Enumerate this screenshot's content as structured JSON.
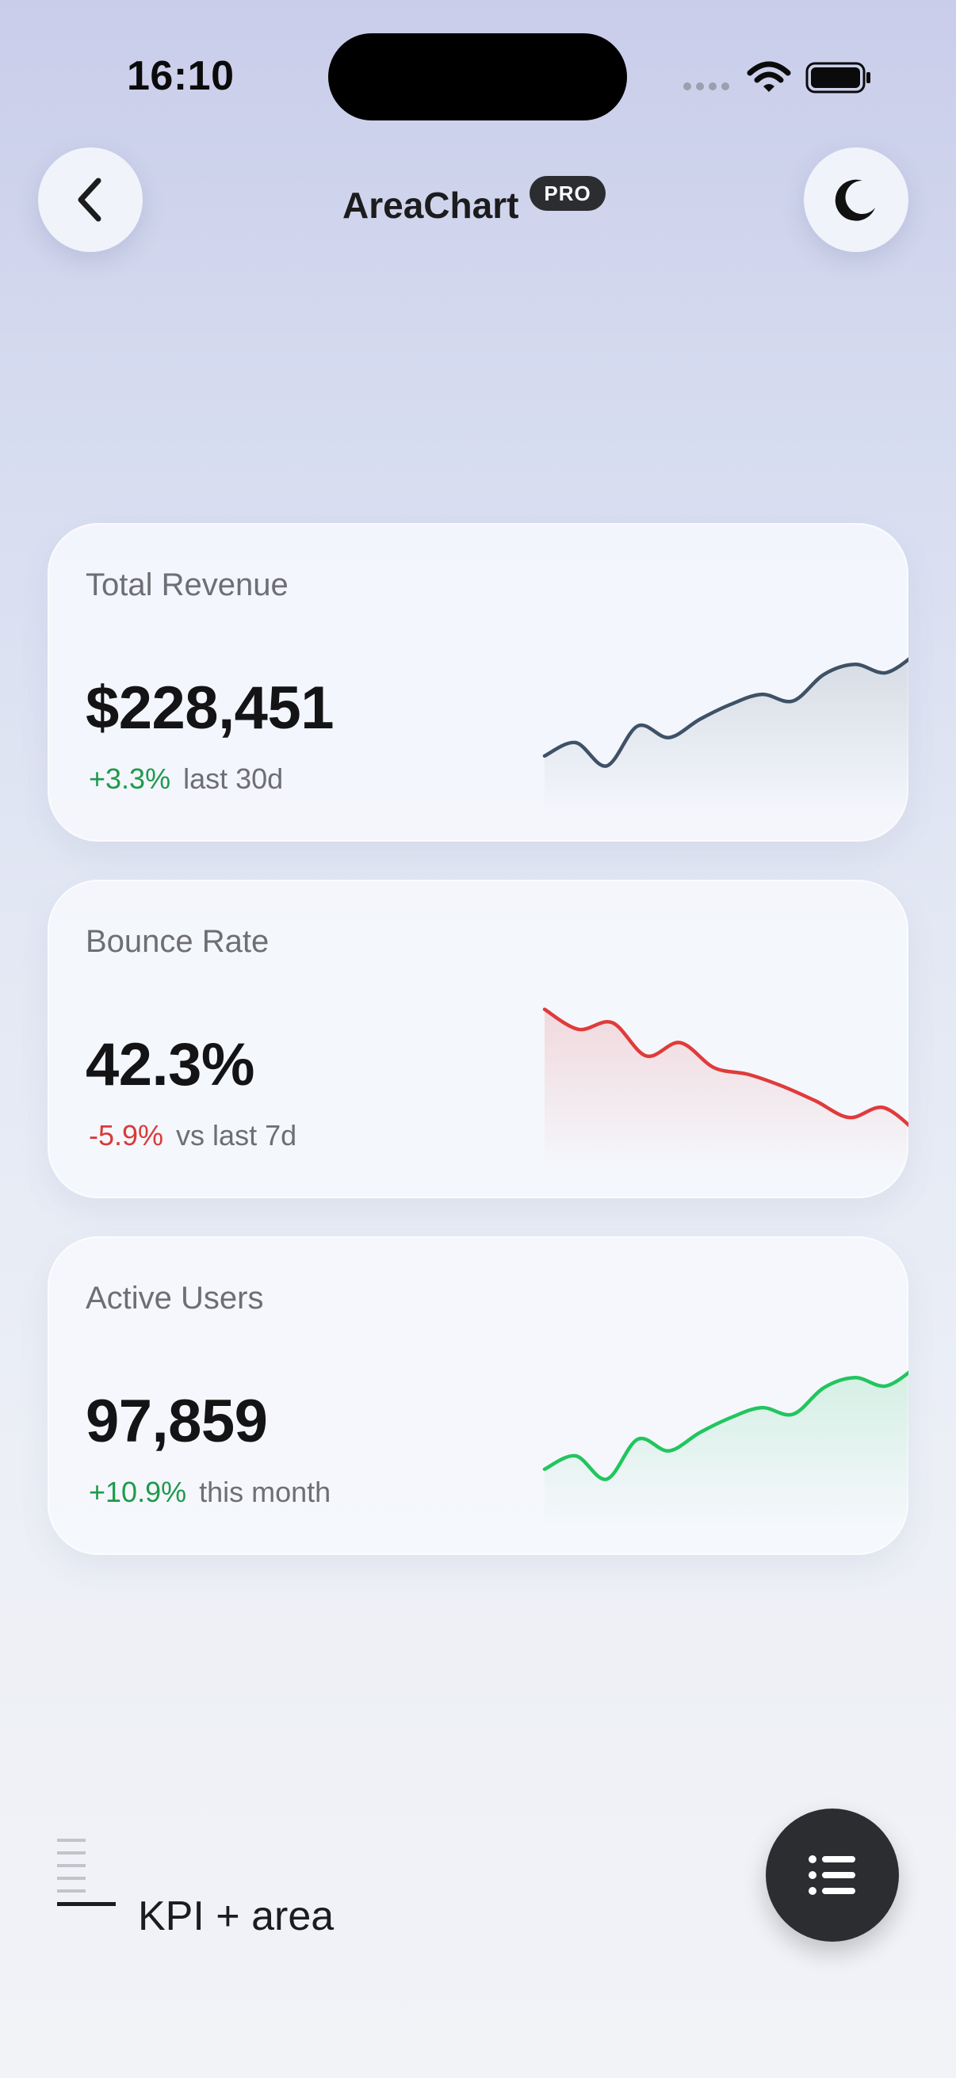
{
  "status_bar": {
    "time": "16:10"
  },
  "nav": {
    "title": "AreaChart",
    "badge": "PRO",
    "back_icon": "chevron-left-icon",
    "theme_icon": "moon-icon"
  },
  "cards": [
    {
      "title": "Total Revenue",
      "value": "$228,451",
      "delta": "+3.3%",
      "delta_label": "last 30d",
      "trend": "up",
      "color": "#3f5166",
      "chart_data": {
        "type": "area",
        "values": [
          22,
          30,
          16,
          40,
          33,
          44,
          53,
          59,
          55,
          71,
          77,
          72,
          84
        ]
      }
    },
    {
      "title": "Bounce Rate",
      "value": "42.3%",
      "delta": "-5.9%",
      "delta_label": "vs last 7d",
      "trend": "down",
      "color": "#e03b3b",
      "chart_data": {
        "type": "area",
        "values": [
          84,
          72,
          76,
          56,
          64,
          49,
          45,
          38,
          29,
          19,
          25,
          10
        ]
      }
    },
    {
      "title": "Active Users",
      "value": "97,859",
      "delta": "+10.9%",
      "delta_label": "this month",
      "trend": "up",
      "color": "#22c55e",
      "chart_data": {
        "type": "area",
        "values": [
          22,
          30,
          16,
          40,
          33,
          44,
          53,
          59,
          55,
          71,
          77,
          72,
          84
        ]
      }
    }
  ],
  "footer": {
    "label": "KPI + area",
    "fab_icon": "list-icon"
  },
  "colors": {
    "up": "#1f9a4b",
    "down": "#d83a3a",
    "fab": "#2b2d31"
  }
}
